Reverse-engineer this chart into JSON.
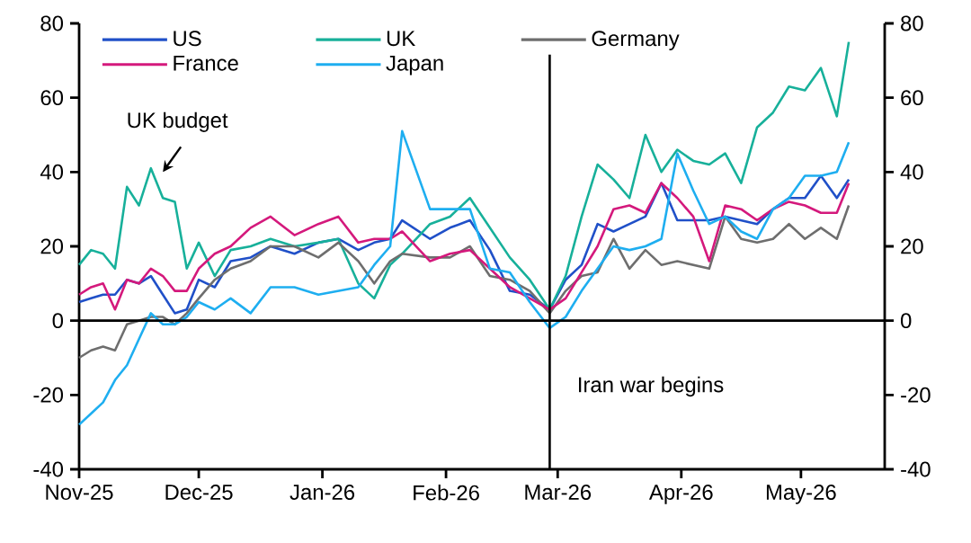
{
  "chart_data": {
    "type": "line",
    "x": [
      "2025-11-01",
      "2025-11-04",
      "2025-11-07",
      "2025-11-10",
      "2025-11-13",
      "2025-11-16",
      "2025-11-19",
      "2025-11-22",
      "2025-11-25",
      "2025-11-28",
      "2025-12-01",
      "2025-12-05",
      "2025-12-09",
      "2025-12-14",
      "2025-12-19",
      "2025-12-25",
      "2025-12-31",
      "2026-01-05",
      "2026-01-10",
      "2026-01-14",
      "2026-01-18",
      "2026-01-21",
      "2026-01-28",
      "2026-02-02",
      "2026-02-07",
      "2026-02-12",
      "2026-02-17",
      "2026-02-22",
      "2026-02-27",
      "2026-03-03",
      "2026-03-07",
      "2026-03-11",
      "2026-03-15",
      "2026-03-19",
      "2026-03-23",
      "2026-03-27",
      "2026-03-31",
      "2026-04-04",
      "2026-04-08",
      "2026-04-12",
      "2026-04-16",
      "2026-04-20",
      "2026-04-24",
      "2026-04-28",
      "2026-05-02",
      "2026-05-06",
      "2026-05-10",
      "2026-05-13"
    ],
    "series": [
      {
        "name": "US",
        "color": "#2050c8",
        "values": [
          5,
          6,
          7,
          7,
          11,
          10,
          12,
          7,
          2,
          3,
          11,
          9,
          16,
          17,
          20,
          18,
          21,
          22,
          19,
          21,
          22,
          27,
          22,
          25,
          27,
          19,
          8,
          7,
          3,
          11,
          15,
          26,
          24,
          26,
          28,
          37,
          27,
          27,
          27,
          28,
          27,
          26,
          30,
          33,
          33,
          39,
          33,
          38
        ]
      },
      {
        "name": "UK",
        "color": "#17b09a",
        "values": [
          15,
          19,
          18,
          14,
          36,
          31,
          41,
          33,
          32,
          14,
          21,
          12,
          19,
          20,
          22,
          20,
          21,
          22,
          10,
          6,
          15,
          18,
          26,
          28,
          33,
          25,
          17,
          11,
          3,
          12,
          28,
          42,
          38,
          33,
          50,
          40,
          46,
          43,
          42,
          45,
          37,
          52,
          56,
          63,
          62,
          68,
          55,
          75
        ]
      },
      {
        "name": "Germany",
        "color": "#6e6e6e",
        "values": [
          -10,
          -8,
          -7,
          -8,
          -1,
          0,
          1,
          1,
          -1,
          2,
          6,
          11,
          14,
          16,
          20,
          20,
          17,
          21,
          16,
          10,
          16,
          18,
          17,
          17,
          20,
          12,
          11,
          8,
          2,
          8,
          12,
          13,
          22,
          14,
          19,
          15,
          16,
          15,
          14,
          28,
          22,
          21,
          22,
          26,
          22,
          25,
          22,
          31
        ]
      },
      {
        "name": "France",
        "color": "#d4197c",
        "values": [
          7,
          9,
          10,
          3,
          11,
          10,
          14,
          12,
          8,
          8,
          14,
          18,
          20,
          25,
          28,
          23,
          26,
          28,
          21,
          22,
          22,
          24,
          16,
          18,
          19,
          14,
          9,
          6,
          3,
          6,
          13,
          20,
          30,
          31,
          29,
          37,
          33,
          28,
          16,
          31,
          30,
          27,
          30,
          32,
          31,
          29,
          29,
          37
        ]
      },
      {
        "name": "Japan",
        "color": "#1eaef0",
        "values": [
          -28,
          -25,
          -22,
          -16,
          -12,
          -5,
          2,
          -1,
          -1,
          1,
          5,
          3,
          6,
          2,
          9,
          9,
          7,
          8,
          9,
          15,
          20,
          51,
          30,
          30,
          30,
          14,
          13,
          5,
          -2,
          1,
          8,
          14,
          20,
          19,
          20,
          22,
          45,
          35,
          26,
          28,
          24,
          22,
          30,
          33,
          39,
          39,
          40,
          48
        ]
      }
    ],
    "xlim": [
      "2025-11-01",
      "2026-05-22"
    ],
    "xticks": [
      {
        "value": "2025-11-01",
        "label": "Nov-25"
      },
      {
        "value": "2025-12-01",
        "label": "Dec-25"
      },
      {
        "value": "2026-01-01",
        "label": "Jan-26"
      },
      {
        "value": "2026-02-01",
        "label": "Feb-26"
      },
      {
        "value": "2026-03-01",
        "label": "Mar-26"
      },
      {
        "value": "2026-04-01",
        "label": "Apr-26"
      },
      {
        "value": "2026-05-01",
        "label": "May-26"
      }
    ],
    "ylim": [
      -40,
      80
    ],
    "yticks": [
      -40,
      -20,
      0,
      20,
      40,
      60,
      80
    ],
    "y2lim": [
      -40,
      80
    ],
    "y2ticks": [
      -40,
      -20,
      0,
      20,
      40,
      60,
      80
    ],
    "ref_lines": [
      {
        "axis": "y",
        "value": 0,
        "color": "#000000"
      },
      {
        "axis": "x",
        "value": "2026-02-27",
        "label": "Iran war begins",
        "color": "#000000"
      }
    ],
    "annotations": [
      {
        "text": "UK budget",
        "x": "2025-11-22",
        "y": 40
      }
    ],
    "legend": "top left",
    "grid": false,
    "marker": "none",
    "line_style": "solid"
  }
}
